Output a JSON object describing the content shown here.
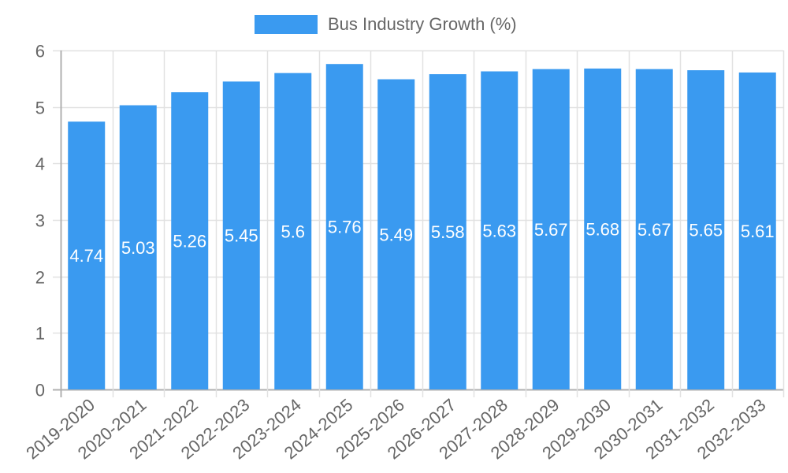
{
  "legend": {
    "label": "Bus Industry Growth (%)",
    "color": "#3a9af0"
  },
  "colors": {
    "bar": "#3a9af0",
    "grid": "#e1e1e1",
    "axis": "#b0b0b0",
    "tick_text": "#666666",
    "bar_label": "#ffffff"
  },
  "chart_data": {
    "type": "bar",
    "title": "",
    "xlabel": "",
    "ylabel": "",
    "categories": [
      "2019-2020",
      "2020-2021",
      "2021-2022",
      "2022-2023",
      "2023-2024",
      "2024-2025",
      "2025-2026",
      "2026-2027",
      "2027-2028",
      "2028-2029",
      "2029-2030",
      "2030-2031",
      "2031-2032",
      "2032-2033"
    ],
    "series": [
      {
        "name": "Bus Industry Growth (%)",
        "values": [
          4.74,
          5.03,
          5.26,
          5.45,
          5.6,
          5.76,
          5.49,
          5.58,
          5.63,
          5.67,
          5.68,
          5.67,
          5.65,
          5.61
        ]
      }
    ],
    "ylim": [
      0,
      6
    ],
    "yticks": [
      0,
      1,
      2,
      3,
      4,
      5,
      6
    ],
    "grid": true,
    "legend_position": "top",
    "data_labels": true,
    "xtick_rotation": -40
  }
}
